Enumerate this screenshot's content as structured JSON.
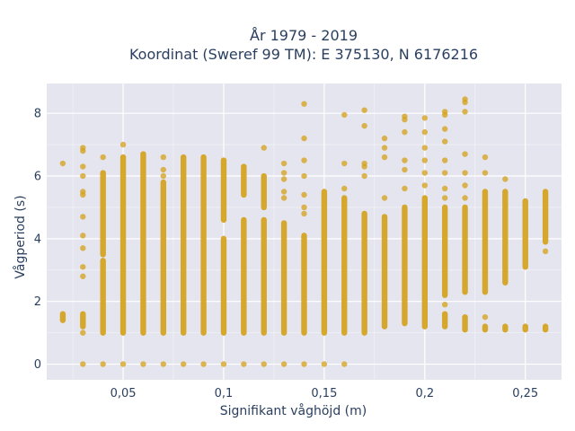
{
  "chart_data": {
    "type": "scatter",
    "title_line1": "År 1979 - 2019",
    "title_line2": "Koordinat (Sweref 99 TM): E 375130, N 6176216",
    "xlabel": "Signifikant våghöjd (m)",
    "ylabel": "Vågperiod (s)",
    "xlim": [
      0.012,
      0.268
    ],
    "ylim": [
      -0.5,
      8.95
    ],
    "x_ticks": [
      {
        "value": 0.05,
        "label": "0,05"
      },
      {
        "value": 0.1,
        "label": "0,1"
      },
      {
        "value": 0.15,
        "label": "0,15"
      },
      {
        "value": 0.2,
        "label": "0,2"
      },
      {
        "value": 0.25,
        "label": "0,25"
      }
    ],
    "y_ticks": [
      {
        "value": 0,
        "label": "0"
      },
      {
        "value": 2,
        "label": "2"
      },
      {
        "value": 4,
        "label": "4"
      },
      {
        "value": 6,
        "label": "6"
      },
      {
        "value": 8,
        "label": "8"
      }
    ],
    "grid": true,
    "colors": {
      "marker": "#d4a017",
      "plot_bg": "#e5e5f0",
      "grid": "#ffffff"
    },
    "columns": [
      {
        "x": 0.02,
        "ranges": [
          [
            1.4,
            1.6
          ]
        ],
        "points": [
          6.4
        ]
      },
      {
        "x": 0.03,
        "ranges": [
          [
            1.2,
            1.6
          ]
        ],
        "points": [
          0,
          1.0,
          2.8,
          3.1,
          3.7,
          4.1,
          4.7,
          5.4,
          5.5,
          6.0,
          6.3,
          6.8,
          6.9
        ]
      },
      {
        "x": 0.04,
        "ranges": [
          [
            1.0,
            3.3
          ],
          [
            3.5,
            6.1
          ]
        ],
        "points": [
          0,
          6.6
        ]
      },
      {
        "x": 0.05,
        "ranges": [
          [
            1.0,
            6.6
          ]
        ],
        "points": [
          0,
          7.0
        ]
      },
      {
        "x": 0.06,
        "ranges": [
          [
            1.0,
            6.7
          ]
        ],
        "points": [
          0
        ]
      },
      {
        "x": 0.07,
        "ranges": [
          [
            1.0,
            5.8
          ]
        ],
        "points": [
          0,
          6.0,
          6.2,
          6.6
        ]
      },
      {
        "x": 0.08,
        "ranges": [
          [
            1.0,
            6.6
          ]
        ],
        "points": [
          0
        ]
      },
      {
        "x": 0.09,
        "ranges": [
          [
            1.0,
            6.6
          ]
        ],
        "points": [
          0
        ]
      },
      {
        "x": 0.1,
        "ranges": [
          [
            1.0,
            4.0
          ],
          [
            4.6,
            6.5
          ]
        ],
        "points": [
          0
        ]
      },
      {
        "x": 0.11,
        "ranges": [
          [
            1.0,
            4.6
          ],
          [
            5.4,
            6.3
          ]
        ],
        "points": [
          0
        ]
      },
      {
        "x": 0.12,
        "ranges": [
          [
            1.0,
            4.6
          ],
          [
            5.0,
            6.0
          ]
        ],
        "points": [
          0,
          6.9
        ]
      },
      {
        "x": 0.13,
        "ranges": [
          [
            1.0,
            4.5
          ]
        ],
        "points": [
          0,
          5.3,
          5.5,
          5.9,
          6.1,
          6.4
        ]
      },
      {
        "x": 0.14,
        "ranges": [
          [
            1.0,
            4.1
          ]
        ],
        "points": [
          0,
          4.8,
          5.0,
          5.4,
          6.0,
          6.5,
          7.2,
          8.3
        ]
      },
      {
        "x": 0.15,
        "ranges": [
          [
            1.0,
            5.5
          ]
        ],
        "points": [
          0
        ]
      },
      {
        "x": 0.16,
        "ranges": [
          [
            1.0,
            5.3
          ]
        ],
        "points": [
          0,
          5.6,
          6.4,
          7.95
        ]
      },
      {
        "x": 0.17,
        "ranges": [
          [
            1.0,
            4.8
          ]
        ],
        "points": [
          6.0,
          6.3,
          6.4,
          7.6,
          8.1
        ]
      },
      {
        "x": 0.18,
        "ranges": [
          [
            1.2,
            4.7
          ]
        ],
        "points": [
          5.3,
          6.6,
          6.9,
          7.2
        ]
      },
      {
        "x": 0.19,
        "ranges": [
          [
            1.3,
            5.0
          ]
        ],
        "points": [
          5.6,
          6.2,
          6.5,
          7.4,
          7.8,
          7.9
        ]
      },
      {
        "x": 0.2,
        "ranges": [
          [
            1.2,
            5.3
          ]
        ],
        "points": [
          5.7,
          6.1,
          6.5,
          6.9,
          7.4,
          7.85
        ]
      },
      {
        "x": 0.21,
        "ranges": [
          [
            1.2,
            1.6
          ],
          [
            2.2,
            5.0
          ]
        ],
        "points": [
          1.9,
          5.3,
          5.6,
          6.1,
          6.5,
          7.1,
          7.5,
          7.95,
          8.05
        ]
      },
      {
        "x": 0.22,
        "ranges": [
          [
            1.1,
            1.5
          ],
          [
            2.3,
            5.0
          ]
        ],
        "points": [
          5.3,
          5.7,
          6.1,
          6.7,
          8.05,
          8.35,
          8.45
        ]
      },
      {
        "x": 0.23,
        "ranges": [
          [
            1.1,
            1.2
          ],
          [
            2.3,
            5.5
          ]
        ],
        "points": [
          1.5,
          6.1,
          6.6
        ]
      },
      {
        "x": 0.24,
        "ranges": [
          [
            1.1,
            1.2
          ],
          [
            2.6,
            5.5
          ]
        ],
        "points": [
          5.9
        ]
      },
      {
        "x": 0.25,
        "ranges": [
          [
            1.1,
            1.2
          ],
          [
            3.1,
            5.2
          ]
        ],
        "points": []
      },
      {
        "x": 0.26,
        "ranges": [
          [
            1.1,
            1.2
          ],
          [
            3.9,
            5.5
          ]
        ],
        "points": [
          3.6
        ]
      }
    ]
  }
}
